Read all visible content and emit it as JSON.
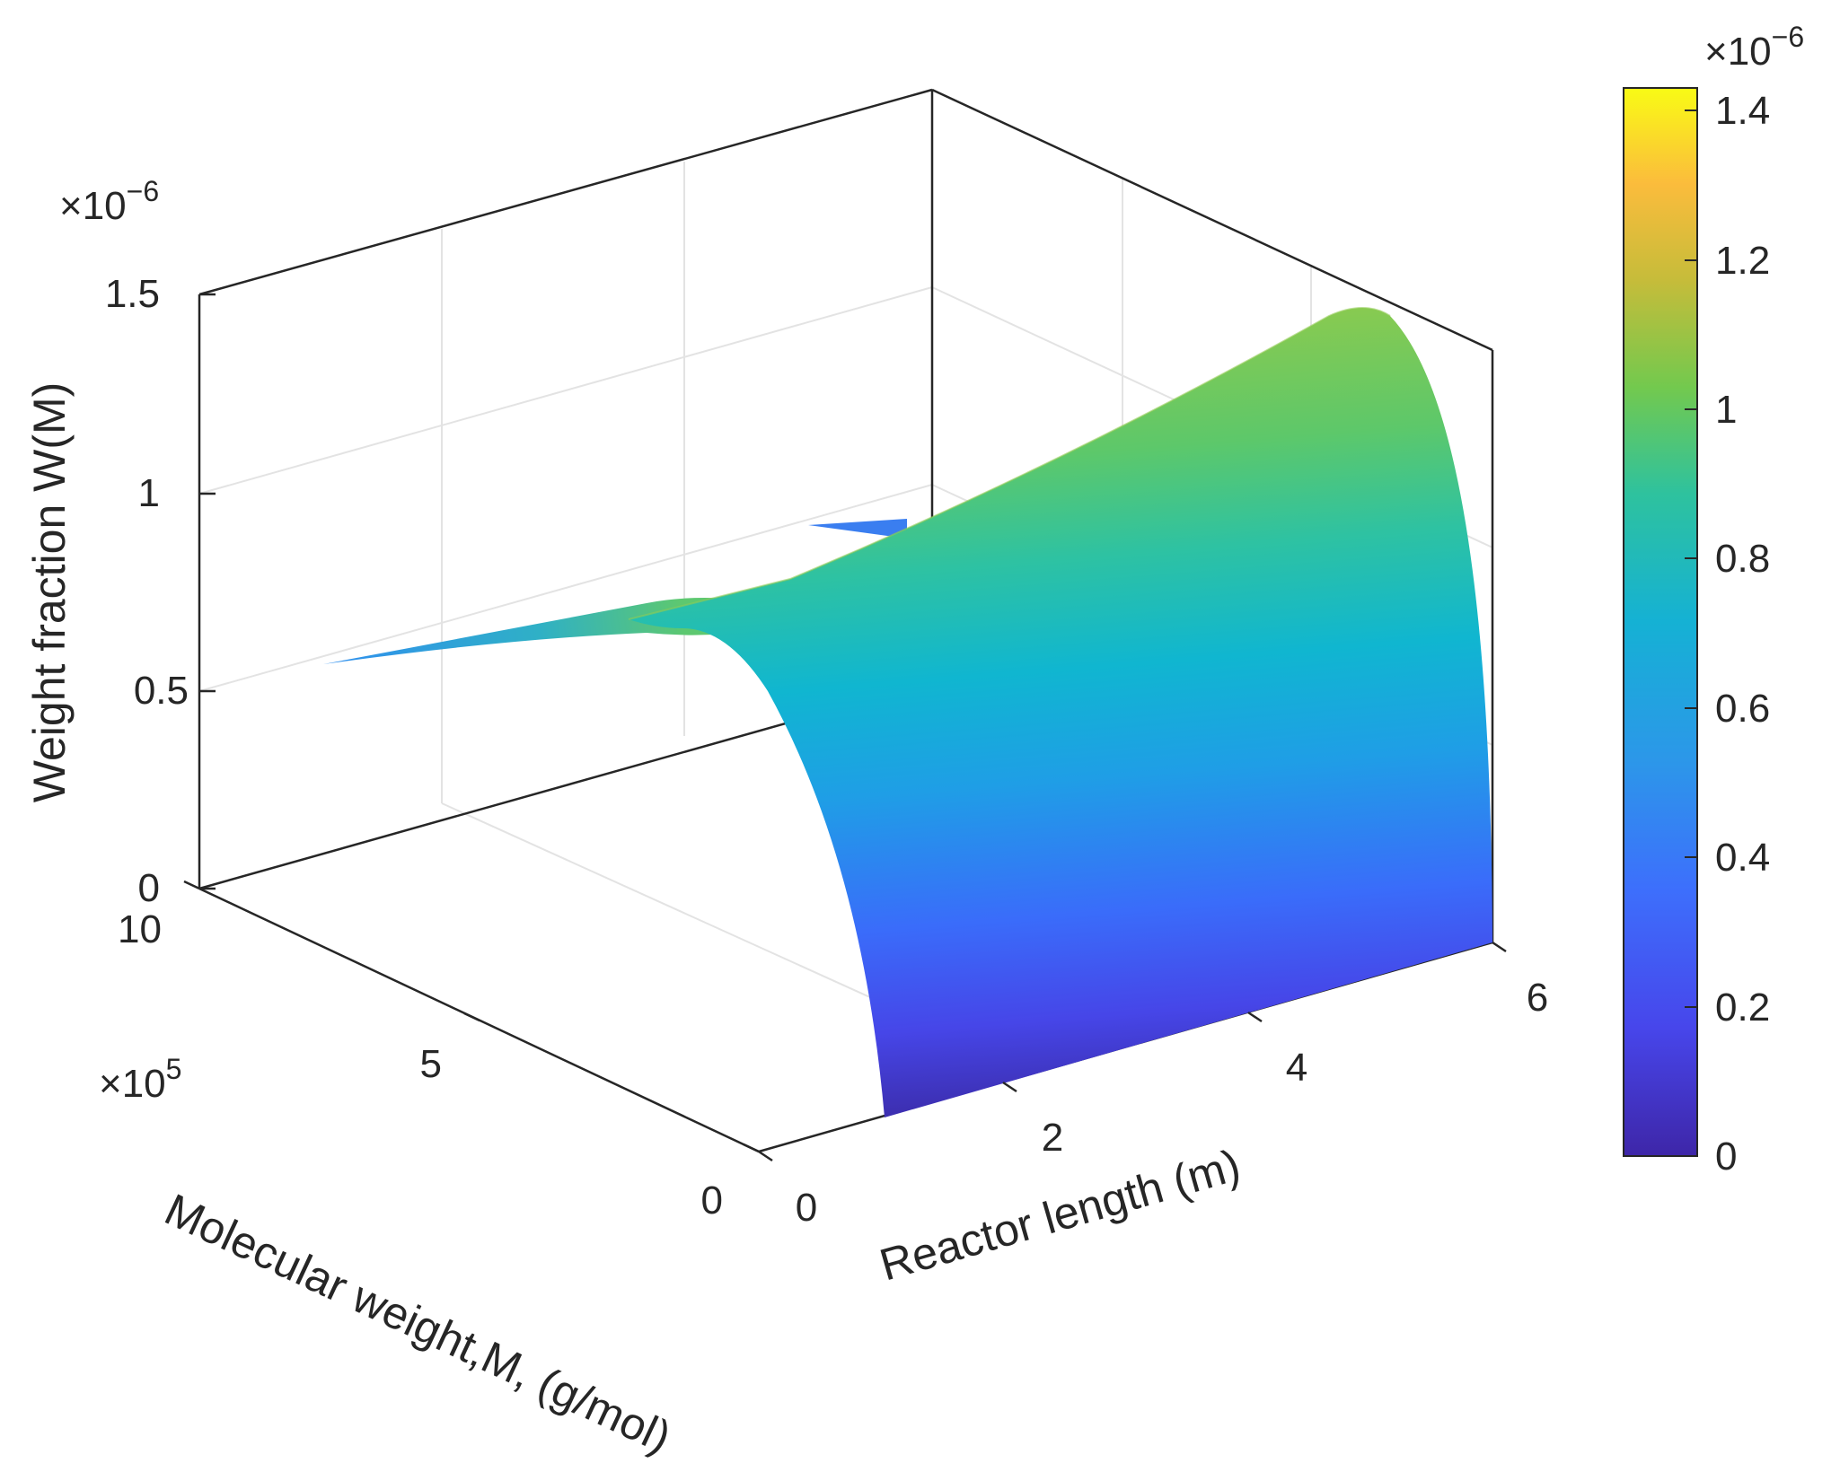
{
  "chart_data": {
    "type": "surface",
    "title": "",
    "xlabel": "Reactor length (m)",
    "ylabel": "Molecular weight,M, (g/mol)",
    "zlabel": "Weight fraction W(M)",
    "x_ticks": [
      "0",
      "2",
      "4",
      "6"
    ],
    "x_range": [
      0,
      6
    ],
    "y_ticks": [
      "0",
      "5",
      "10"
    ],
    "y_range": [
      0,
      10
    ],
    "y_multiplier": "×10",
    "y_exponent": "5",
    "z_ticks": [
      "0",
      "0.5",
      "1",
      "1.5"
    ],
    "z_range": [
      0,
      1.5
    ],
    "z_multiplier": "×10",
    "z_exponent": "−6",
    "grid": true,
    "colormap": "parula",
    "colorbar": {
      "position": "right",
      "ticks": [
        "0",
        "0.2",
        "0.4",
        "0.6",
        "0.8",
        "1",
        "1.2",
        "1.4"
      ],
      "range": [
        0,
        1.43
      ],
      "multiplier": "×10",
      "exponent": "−6"
    },
    "surface": {
      "description_values": {
        "reactor_length_start": 0.5,
        "reactor_length_end": 6,
        "peak_molecular_weight_x1e5": 0.5,
        "peak_weight_fraction_at_start_x1e-6": 0.85,
        "peak_weight_fraction_at_end_x1e-6": 1.43,
        "weight_fraction_at_M_max_x1e-6": 0.48
      }
    }
  }
}
